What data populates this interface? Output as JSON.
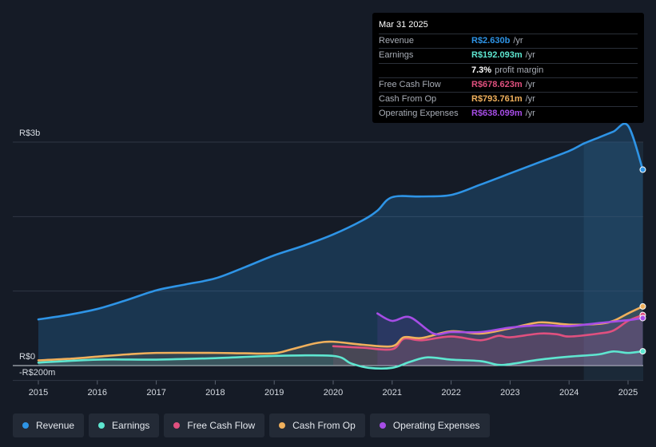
{
  "tooltip": {
    "date": "Mar 31 2025",
    "rows": [
      {
        "label": "Revenue",
        "value": "R$2.630b",
        "unit": "/yr",
        "color": "#2e94e6"
      },
      {
        "label": "Earnings",
        "value": "R$192.093m",
        "unit": "/yr",
        "color": "#5ee6d0"
      },
      {
        "label": "",
        "value": "7.3%",
        "unit": "profit margin",
        "color": "#ffffff"
      },
      {
        "label": "Free Cash Flow",
        "value": "R$678.623m",
        "unit": "/yr",
        "color": "#e0507f"
      },
      {
        "label": "Cash From Op",
        "value": "R$793.761m",
        "unit": "/yr",
        "color": "#f0b05c"
      },
      {
        "label": "Operating Expenses",
        "value": "R$638.099m",
        "unit": "/yr",
        "color": "#a64de6"
      }
    ]
  },
  "legend": [
    {
      "label": "Revenue",
      "color": "#2e94e6"
    },
    {
      "label": "Earnings",
      "color": "#5ee6d0"
    },
    {
      "label": "Free Cash Flow",
      "color": "#e0507f"
    },
    {
      "label": "Cash From Op",
      "color": "#f0b05c"
    },
    {
      "label": "Operating Expenses",
      "color": "#a64de6"
    }
  ],
  "chart_data": {
    "type": "area",
    "title": "",
    "xlabel": "",
    "ylabel": "",
    "ylim": [
      -200,
      3000
    ],
    "y_tick_labels": [
      "R$3b",
      "R$0",
      "-R$200m"
    ],
    "x_tick_labels": [
      "2015",
      "2016",
      "2017",
      "2018",
      "2019",
      "2020",
      "2021",
      "2022",
      "2023",
      "2024",
      "2025"
    ],
    "currency_unit": "R$ millions",
    "series": [
      {
        "name": "Revenue",
        "color": "#2e94e6",
        "x": [
          2015.0,
          2015.5,
          2016.0,
          2016.5,
          2017.0,
          2017.5,
          2018.0,
          2018.5,
          2019.0,
          2019.5,
          2020.0,
          2020.5,
          2020.75,
          2021.0,
          2021.5,
          2022.0,
          2022.5,
          2023.0,
          2023.5,
          2024.0,
          2024.25,
          2024.5,
          2024.75,
          2025.0,
          2025.25
        ],
        "values": [
          620,
          680,
          760,
          880,
          1010,
          1090,
          1170,
          1320,
          1480,
          1610,
          1760,
          1950,
          2080,
          2260,
          2270,
          2290,
          2430,
          2580,
          2730,
          2880,
          2980,
          3060,
          3140,
          3220,
          2630
        ]
      },
      {
        "name": "Earnings",
        "color": "#5ee6d0",
        "x": [
          2015.0,
          2016.0,
          2017.0,
          2018.0,
          2019.0,
          2020.0,
          2020.3,
          2020.6,
          2021.0,
          2021.3,
          2021.6,
          2022.0,
          2022.5,
          2022.8,
          2023.0,
          2023.5,
          2024.0,
          2024.5,
          2024.75,
          2025.0,
          2025.25
        ],
        "values": [
          40,
          80,
          80,
          100,
          130,
          130,
          30,
          -30,
          -30,
          50,
          110,
          80,
          60,
          10,
          20,
          80,
          120,
          150,
          190,
          170,
          192
        ]
      },
      {
        "name": "Free Cash Flow",
        "color": "#e0507f",
        "x": [
          2020.0,
          2020.5,
          2021.0,
          2021.2,
          2021.5,
          2022.0,
          2022.5,
          2022.8,
          2023.0,
          2023.5,
          2023.8,
          2024.0,
          2024.5,
          2024.75,
          2025.0,
          2025.25
        ],
        "values": [
          260,
          240,
          220,
          360,
          340,
          390,
          340,
          400,
          380,
          430,
          420,
          390,
          430,
          470,
          600,
          679
        ]
      },
      {
        "name": "Cash From Op",
        "color": "#f0b05c",
        "x": [
          2015.0,
          2015.5,
          2016.0,
          2016.5,
          2017.0,
          2018.0,
          2018.5,
          2019.0,
          2019.3,
          2019.7,
          2020.0,
          2020.5,
          2021.0,
          2021.2,
          2021.5,
          2022.0,
          2022.5,
          2023.0,
          2023.5,
          2024.0,
          2024.5,
          2024.75,
          2025.0,
          2025.25
        ],
        "values": [
          70,
          90,
          120,
          150,
          170,
          170,
          165,
          165,
          220,
          300,
          320,
          280,
          260,
          380,
          370,
          460,
          430,
          500,
          580,
          550,
          560,
          600,
          700,
          794
        ]
      },
      {
        "name": "Operating Expenses",
        "color": "#a64de6",
        "x": [
          2020.75,
          2021.0,
          2021.3,
          2021.7,
          2022.0,
          2022.5,
          2023.0,
          2023.5,
          2024.0,
          2024.5,
          2025.0,
          2025.25
        ],
        "values": [
          700,
          600,
          650,
          430,
          450,
          450,
          510,
          540,
          530,
          570,
          610,
          638
        ]
      }
    ]
  }
}
